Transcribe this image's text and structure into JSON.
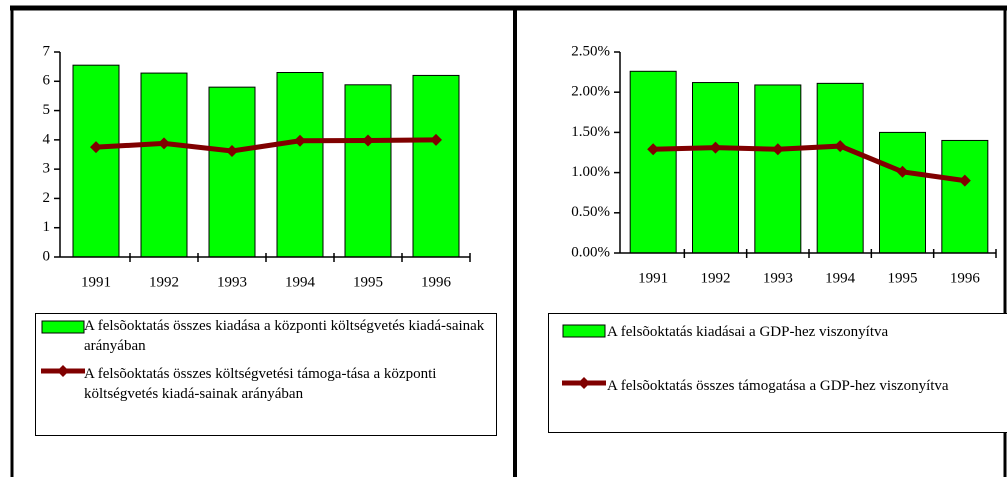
{
  "chart_data": [
    {
      "type": "bar",
      "categories": [
        "1991",
        "1992",
        "1993",
        "1994",
        "1995",
        "1996"
      ],
      "series": [
        {
          "name": "A felsõoktatás összes kiadása a központi költségvetés kiadá-sainak arányában",
          "type": "bar",
          "color": "#00ff00",
          "values": [
            6.55,
            6.28,
            5.8,
            6.3,
            5.88,
            6.2
          ]
        },
        {
          "name": "A felsõoktatás összes költségvetési támoga-tása a központi költségvetés kiadá-sainak arányában",
          "type": "line",
          "color": "#800000",
          "values": [
            3.75,
            3.88,
            3.62,
            3.97,
            3.98,
            4.0
          ]
        }
      ],
      "ylim": [
        0,
        7
      ],
      "yticks": [
        0,
        1,
        2,
        3,
        4,
        5,
        6,
        7
      ]
    },
    {
      "type": "bar",
      "categories": [
        "1991",
        "1992",
        "1993",
        "1994",
        "1995",
        "1996"
      ],
      "series": [
        {
          "name": "A felsõoktatás kiadásai a GDP-hez viszonyítva",
          "type": "bar",
          "color": "#00ff00",
          "values": [
            2.26,
            2.12,
            2.09,
            2.11,
            1.5,
            1.4
          ]
        },
        {
          "name": "A felsõoktatás összes támogatása a GDP-hez viszonyítva",
          "type": "line",
          "color": "#800000",
          "values": [
            1.29,
            1.31,
            1.29,
            1.33,
            1.01,
            0.9
          ]
        }
      ],
      "ylim": [
        0,
        2.5
      ],
      "yticks": [
        {
          "value": 0,
          "label": "0.00%"
        },
        {
          "value": 0.5,
          "label": "0.50%"
        },
        {
          "value": 1,
          "label": "1.00%"
        },
        {
          "value": 1.5,
          "label": "1.50%"
        },
        {
          "value": 2,
          "label": "2.00%"
        },
        {
          "value": 2.5,
          "label": "2.50%"
        }
      ]
    }
  ]
}
